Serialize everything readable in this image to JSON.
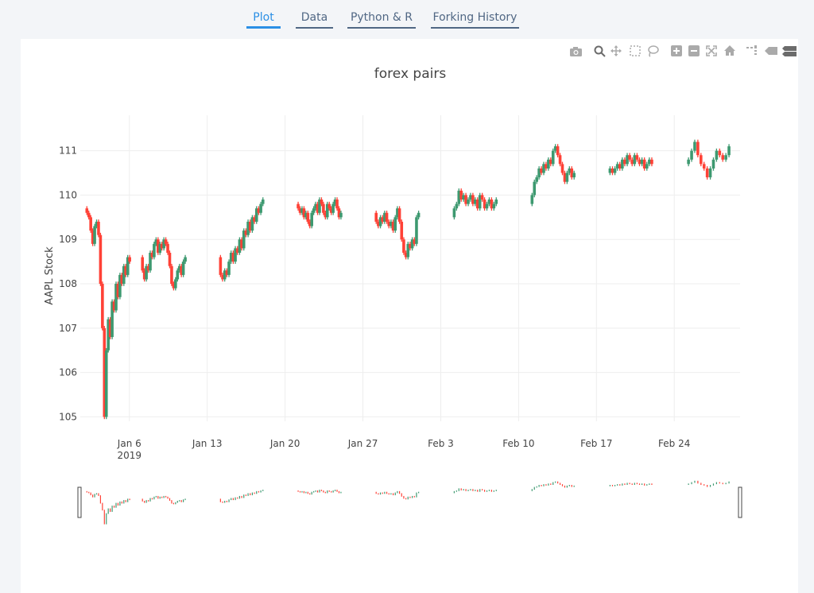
{
  "tabs": [
    {
      "label": "Plot",
      "active": true
    },
    {
      "label": "Data",
      "active": false
    },
    {
      "label": "Python & R",
      "active": false
    },
    {
      "label": "Forking History",
      "active": false
    }
  ],
  "modebar": {
    "icons": [
      "camera-icon",
      "zoom-icon",
      "pan-icon",
      "box-select-icon",
      "lasso-select-icon",
      "zoom-in-icon",
      "zoom-out-icon",
      "autoscale-icon",
      "home-icon",
      "spike-lines-icon",
      "hover-closest-icon",
      "hover-compare-icon"
    ]
  },
  "colors": {
    "increasing": "#3d9970",
    "decreasing": "#ff4136",
    "grid": "#eeeeee",
    "axis_text": "#444444",
    "tab_active": "#2b8fe5",
    "tab_inactive": "#506784"
  },
  "chart_data": {
    "type": "candlestick",
    "title": "forex pairs",
    "ylabel": "AAPL Stock",
    "xlabel": "",
    "ylim": [
      104.9,
      111.8
    ],
    "yticks": [
      105,
      106,
      107,
      108,
      109,
      110,
      111
    ],
    "xticks": [
      {
        "label": "Jan 6",
        "sub": "2019"
      },
      {
        "label": "Jan 13",
        "sub": ""
      },
      {
        "label": "Jan 20",
        "sub": ""
      },
      {
        "label": "Jan 27",
        "sub": ""
      },
      {
        "label": "Feb 3",
        "sub": ""
      },
      {
        "label": "Feb 10",
        "sub": ""
      },
      {
        "label": "Feb 17",
        "sub": ""
      },
      {
        "label": "Feb 24",
        "sub": ""
      }
    ],
    "grid": true,
    "rangeslider": true,
    "sessions": [
      {
        "day": "2019-01-02",
        "points": [
          109.7,
          109.6,
          109.5,
          109.2,
          108.9,
          109.3,
          109.4,
          109.1,
          108.0,
          107.0,
          105.0,
          106.5,
          107.2,
          106.8,
          107.6,
          107.4,
          108.0,
          107.7,
          108.2,
          108.0,
          108.4,
          108.2,
          108.6,
          108.5
        ]
      },
      {
        "day": "2019-01-07",
        "points": [
          108.6,
          108.3,
          108.1,
          108.4,
          108.3,
          108.7,
          108.6,
          108.9,
          109.0,
          108.7,
          108.9,
          108.8,
          109.0,
          108.9,
          108.7,
          108.4,
          108.0,
          107.9,
          108.1,
          108.3,
          108.4,
          108.2,
          108.5,
          108.6
        ]
      },
      {
        "day": "2019-01-14",
        "points": [
          108.6,
          108.2,
          108.1,
          108.3,
          108.2,
          108.5,
          108.7,
          108.5,
          108.8,
          108.7,
          109.0,
          108.8,
          109.2,
          109.1,
          109.4,
          109.2,
          109.5,
          109.4,
          109.7,
          109.6,
          109.8,
          109.9
        ]
      },
      {
        "day": "2019-01-21",
        "points": [
          109.8,
          109.7,
          109.6,
          109.7,
          109.5,
          109.6,
          109.4,
          109.3,
          109.6,
          109.7,
          109.8,
          109.6,
          109.9,
          109.8,
          109.6,
          109.5,
          109.8,
          109.7,
          109.6,
          109.8,
          109.9,
          109.7,
          109.5,
          109.6
        ]
      },
      {
        "day": "2019-01-28",
        "points": [
          109.6,
          109.4,
          109.3,
          109.5,
          109.4,
          109.6,
          109.4,
          109.3,
          109.4,
          109.2,
          109.5,
          109.7,
          109.4,
          109.0,
          108.7,
          108.6,
          108.9,
          108.8,
          109.0,
          108.9,
          109.5,
          109.6
        ]
      },
      {
        "day": "2019-02-04",
        "points": [
          109.5,
          109.7,
          109.8,
          110.1,
          109.9,
          110.0,
          109.8,
          109.9,
          110.0,
          109.8,
          109.9,
          109.7,
          110.0,
          109.9,
          109.7,
          109.8,
          109.9,
          109.7,
          109.8,
          109.9
        ]
      },
      {
        "day": "2019-02-11",
        "points": [
          109.8,
          110.0,
          110.3,
          110.4,
          110.6,
          110.5,
          110.7,
          110.6,
          110.8,
          110.7,
          111.0,
          111.1,
          110.9,
          110.7,
          110.5,
          110.3,
          110.5,
          110.6,
          110.4,
          110.5
        ]
      },
      {
        "day": "2019-02-18",
        "points": [
          110.5,
          110.6,
          110.5,
          110.6,
          110.7,
          110.6,
          110.8,
          110.7,
          110.9,
          110.8,
          110.7,
          110.9,
          110.8,
          110.7,
          110.8,
          110.6,
          110.7,
          110.8,
          110.7
        ]
      },
      {
        "day": "2019-02-25",
        "points": [
          110.7,
          110.8,
          111.0,
          111.2,
          110.9,
          110.7,
          110.6,
          110.4,
          110.6,
          110.8,
          111.0,
          110.9,
          110.8,
          110.9,
          111.1
        ]
      }
    ]
  }
}
